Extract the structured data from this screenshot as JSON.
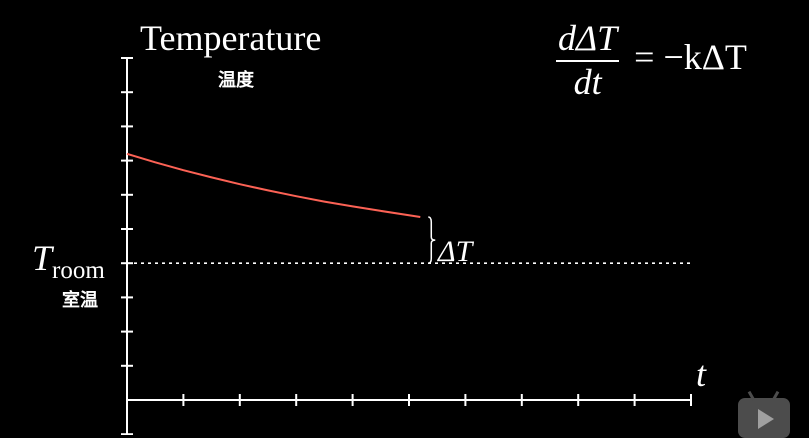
{
  "labels": {
    "y_title": "Temperature",
    "y_title_cn": "温度",
    "troom_main": "T",
    "troom_sub": "room",
    "troom_cn": "室温",
    "t_axis": "t",
    "delta_label": "ΔT"
  },
  "equation": {
    "numerator": "dΔT",
    "denominator": "dt",
    "rhs": "= −kΔT"
  },
  "subtitle": "",
  "colors": {
    "background": "#000000",
    "curve": "#fc6255",
    "axis": "#ffffff",
    "dashed_line": "#ffffff",
    "subtitle": "#2b2bff"
  },
  "chart_data": {
    "type": "line",
    "title": "Temperature",
    "ylabel": "Temperature",
    "xlabel": "t",
    "x_ticks": [
      1,
      2,
      3,
      4,
      5,
      6,
      7,
      8,
      9,
      10
    ],
    "y_ticks": [
      -1,
      1,
      2,
      3,
      4,
      5,
      6,
      7,
      8,
      9,
      10
    ],
    "xlim": [
      0,
      10
    ],
    "ylim": [
      0,
      10
    ],
    "reference_line": {
      "name": "T_room",
      "y": 4,
      "style": "dashed"
    },
    "series": [
      {
        "x": [
          0,
          0.5,
          1,
          1.5,
          2,
          2.5,
          3,
          3.5,
          4,
          4.5,
          5.2
        ],
        "y": [
          7.2,
          6.95,
          6.72,
          6.51,
          6.31,
          6.13,
          5.96,
          5.8,
          5.66,
          5.53,
          5.35
        ]
      }
    ],
    "annotations": [
      "ΔT"
    ],
    "grid": false
  }
}
